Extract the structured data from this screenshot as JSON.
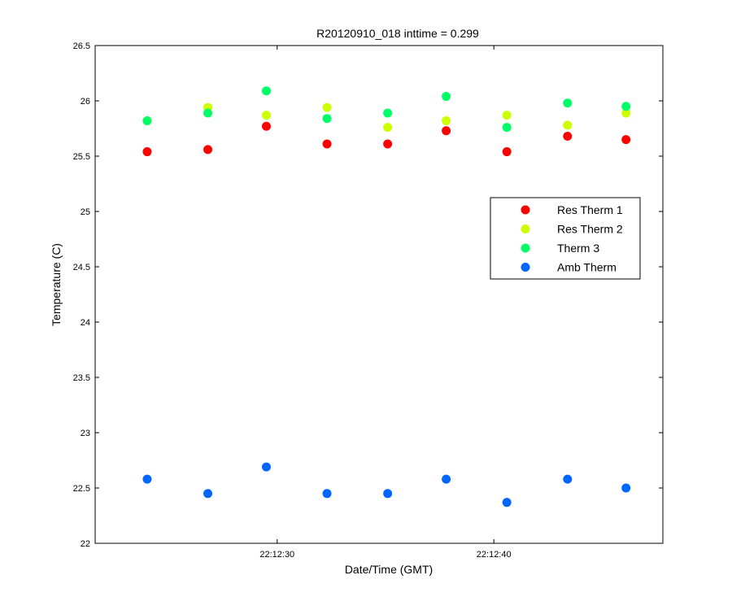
{
  "chart_data": {
    "type": "scatter",
    "title": "R20120910_018 inttime = 0.299",
    "xlabel": "Date/Time (GMT)",
    "ylabel": "Temperature (C)",
    "x_unit": "seconds after 22:12:00 GMT",
    "xlim": [
      21.6,
      47.8
    ],
    "ylim": [
      22,
      26.5
    ],
    "yticks": [
      22,
      22.5,
      23,
      23.5,
      24,
      24.5,
      25,
      25.5,
      26,
      26.5
    ],
    "ytick_labels": [
      "22",
      "22.5",
      "23",
      "23.5",
      "24",
      "24.5",
      "25",
      "25.5",
      "26",
      "26.5"
    ],
    "xticks": [
      30,
      40
    ],
    "xtick_labels": [
      "22:12:30",
      "22:12:40"
    ],
    "x": [
      24.0,
      26.8,
      29.5,
      32.3,
      35.1,
      37.8,
      40.6,
      43.4,
      46.1
    ],
    "series": [
      {
        "name": "Res Therm 1",
        "color": "#ff0000",
        "values": [
          25.54,
          25.56,
          25.77,
          25.61,
          25.61,
          25.73,
          25.54,
          25.68,
          25.65
        ]
      },
      {
        "name": "Res Therm 2",
        "color": "#ccff00",
        "values": [
          25.82,
          25.94,
          25.87,
          25.94,
          25.76,
          25.82,
          25.87,
          25.78,
          25.89
        ]
      },
      {
        "name": "Therm 3",
        "color": "#00ff66",
        "values": [
          25.82,
          25.89,
          26.09,
          25.84,
          25.89,
          26.04,
          25.76,
          25.98,
          25.95
        ]
      },
      {
        "name": "Amb Therm",
        "color": "#0066ff",
        "values": [
          22.58,
          22.45,
          22.69,
          22.45,
          22.45,
          22.58,
          22.37,
          22.58,
          22.5
        ]
      }
    ],
    "legend": "upper-right",
    "grid": false
  }
}
